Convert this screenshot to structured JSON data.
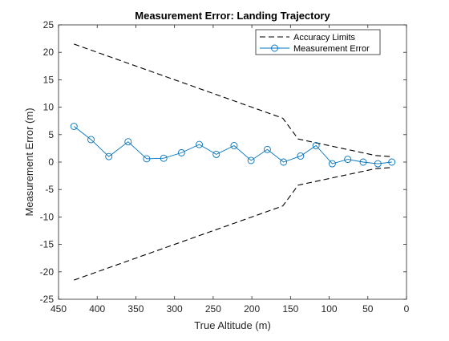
{
  "chart_data": {
    "type": "line",
    "title": "Measurement Error: Landing Trajectory",
    "xlabel": "True Altitude (m)",
    "ylabel": "Measurement Error (m)",
    "xlim": [
      450,
      0
    ],
    "x_reversed": true,
    "ylim": [
      -25,
      25
    ],
    "xticks": [
      "450",
      "400",
      "350",
      "300",
      "250",
      "200",
      "150",
      "100",
      "50",
      "0"
    ],
    "yticks": [
      "25",
      "20",
      "15",
      "10",
      "5",
      "0",
      "-5",
      "-10",
      "-15",
      "-20",
      "-25"
    ],
    "grid": false,
    "legend_position": "top-right",
    "legend": [
      "Accuracy Limits",
      "Measurement Error"
    ],
    "series": [
      {
        "name": "Accuracy Limits",
        "style": "dashed",
        "color": "#000000",
        "x": [
          430,
          160,
          140,
          40,
          20
        ],
        "y": [
          21.5,
          8.0,
          4.2,
          1.2,
          1.0
        ]
      },
      {
        "name": "Accuracy Limits (lower)",
        "style": "dashed",
        "color": "#000000",
        "x": [
          430,
          160,
          140,
          40,
          20
        ],
        "y": [
          -21.5,
          -8.0,
          -4.2,
          -1.2,
          -1.0
        ]
      },
      {
        "name": "Measurement Error",
        "style": "solid-circle-markers",
        "color": "#0072BD",
        "x": [
          430,
          408,
          385,
          360,
          336,
          314,
          291,
          268,
          246,
          223,
          201,
          180,
          159,
          137,
          117,
          96,
          76,
          56,
          37,
          19
        ],
        "y": [
          6.5,
          4.1,
          1.0,
          3.7,
          0.6,
          0.7,
          1.7,
          3.2,
          1.4,
          3.0,
          0.3,
          2.3,
          0.0,
          1.1,
          3.0,
          -0.3,
          0.5,
          0.0,
          -0.3,
          0.0
        ]
      }
    ]
  }
}
